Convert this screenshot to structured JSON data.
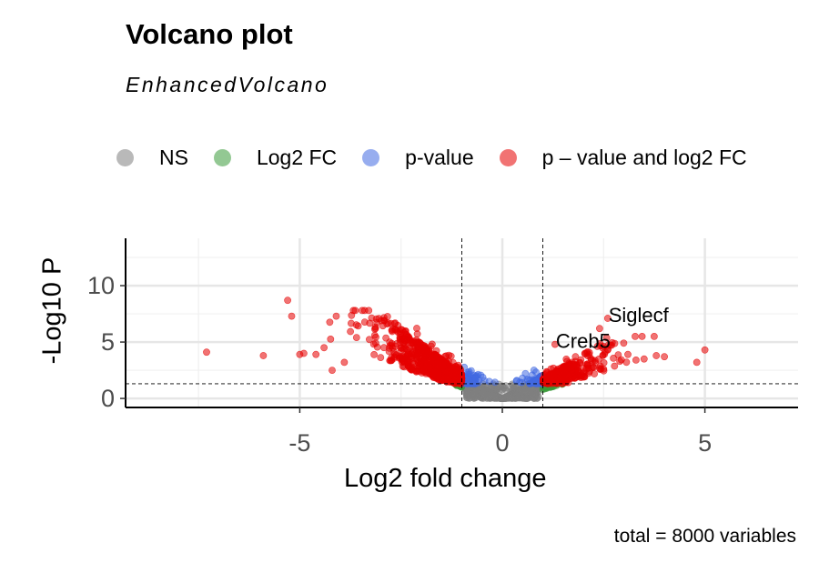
{
  "chart_data": {
    "type": "scatter",
    "title": "Volcano plot",
    "subtitle": "EnhancedVolcano",
    "xlabel": "Log2 fold change",
    "ylabel": "-Log10 P",
    "xlim": [
      -9.3,
      7.3
    ],
    "ylim": [
      -0.8,
      14.2
    ],
    "x_ticks": [
      -5,
      0,
      5
    ],
    "y_ticks": [
      0,
      5,
      10
    ],
    "caption": "total = 8000 variables",
    "fc_cutoff": [
      -1,
      1
    ],
    "p_cutoff_log10": 1.3,
    "legend": [
      {
        "label": "NS",
        "color": "#808080"
      },
      {
        "label": "Log2 FC",
        "color": "#3a9b3a"
      },
      {
        "label": "p-value",
        "color": "#4169e1"
      },
      {
        "label": "p – value and log2 FC",
        "color": "#e60000"
      }
    ],
    "labeled_points": [
      {
        "label": "Creb5",
        "x": 1.3,
        "y": 4.8
      },
      {
        "label": "Siglecf",
        "x": 2.6,
        "y": 7.1
      }
    ],
    "outliers": [
      {
        "x": -7.3,
        "y": 4.1
      },
      {
        "x": -5.9,
        "y": 3.8
      },
      {
        "x": -5.3,
        "y": 8.7
      },
      {
        "x": -5.2,
        "y": 7.3
      },
      {
        "x": -5.0,
        "y": 3.9
      },
      {
        "x": -4.9,
        "y": 4.0
      },
      {
        "x": -4.6,
        "y": 3.9
      },
      {
        "x": -4.4,
        "y": 4.5
      },
      {
        "x": -4.2,
        "y": 2.5
      },
      {
        "x": -4.1,
        "y": 7.3
      },
      {
        "x": -3.9,
        "y": 3.2
      },
      {
        "x": -3.6,
        "y": 5.4
      },
      {
        "x": 2.4,
        "y": 6.2
      },
      {
        "x": 2.6,
        "y": 4.3
      },
      {
        "x": 2.9,
        "y": 3.3
      },
      {
        "x": 3.1,
        "y": 3.9
      },
      {
        "x": 3.3,
        "y": 3.4
      },
      {
        "x": 3.5,
        "y": 3.5
      },
      {
        "x": 3.8,
        "y": 3.8
      },
      {
        "x": 4.0,
        "y": 3.7
      },
      {
        "x": 4.8,
        "y": 3.2
      },
      {
        "x": 5.0,
        "y": 4.3
      },
      {
        "x": 2.2,
        "y": 2.7
      },
      {
        "x": 2.5,
        "y": 2.6
      }
    ]
  }
}
